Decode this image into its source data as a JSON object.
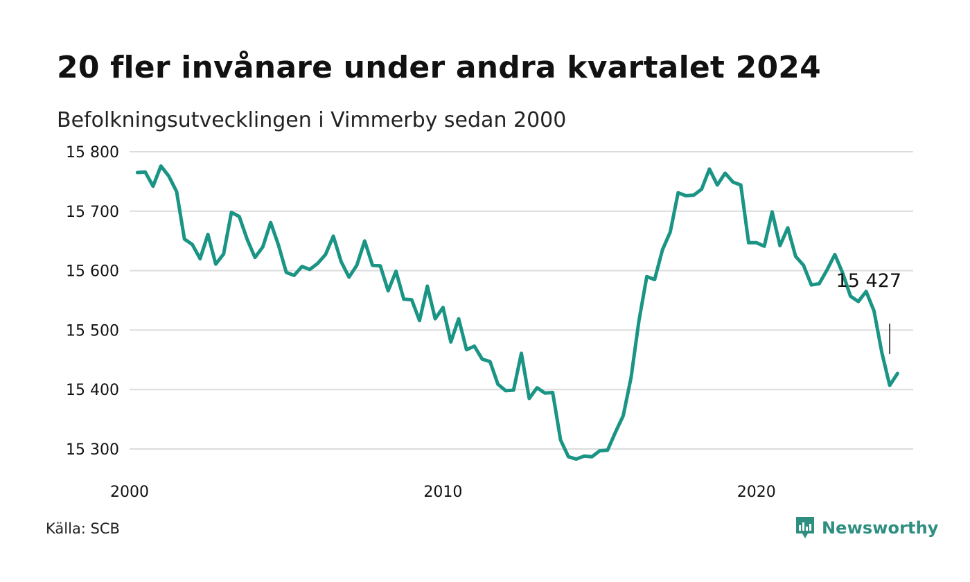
{
  "header": {
    "title": "20 fler invånare under andra kvartalet 2024",
    "subtitle": "Befolkningsutvecklingen i Vimmerby sedan 2000"
  },
  "footer": {
    "source": "Källa: SCB",
    "brand": "Newsworthy"
  },
  "colors": {
    "line": "#1a9484",
    "grid": "#dcdcdc",
    "brand": "#2e8e80",
    "text": "#111111"
  },
  "chart_data": {
    "type": "line",
    "title": "20 fler invånare under andra kvartalet 2024",
    "subtitle": "Befolkningsutvecklingen i Vimmerby sedan 2000",
    "xlabel": "",
    "ylabel": "",
    "xlim": [
      2000,
      2025
    ],
    "ylim": [
      15300,
      15800
    ],
    "y_ticks": [
      15300,
      15400,
      15500,
      15600,
      15700,
      15800
    ],
    "y_tick_labels": [
      "15 300",
      "15 400",
      "15 500",
      "15 600",
      "15 700",
      "15 800"
    ],
    "x_ticks": [
      2000,
      2010,
      2020
    ],
    "x_tick_labels": [
      "2000",
      "2010",
      "2020"
    ],
    "grid": true,
    "legend": "none",
    "annotation": {
      "label": "15 427",
      "x": 2024.25,
      "y": 15427
    },
    "series": [
      {
        "start": 2000.25,
        "step": 0.25,
        "values": [
          15765,
          15766,
          15742,
          15776,
          15759,
          15733,
          15653,
          15644,
          15620,
          15661,
          15611,
          15628,
          15698,
          15691,
          15653,
          15622,
          15640,
          15681,
          15643,
          15597,
          15592,
          15607,
          15602,
          15612,
          15627,
          15658,
          15615,
          15589,
          15609,
          15650,
          15609,
          15608,
          15566,
          15599,
          15552,
          15551,
          15516,
          15574,
          15519,
          15538,
          15480,
          15519,
          15467,
          15473,
          15451,
          15447,
          15409,
          15398,
          15399,
          15461,
          15385,
          15403,
          15394,
          15395,
          15315,
          15287,
          15283,
          15288,
          15287,
          15297,
          15298,
          15328,
          15356,
          15420,
          15515,
          15590,
          15585,
          15635,
          15665,
          15731,
          15726,
          15727,
          15737,
          15771,
          15744,
          15764,
          15749,
          15744,
          15647,
          15647,
          15641,
          15699,
          15642,
          15672,
          15624,
          15609,
          15576,
          15578,
          15601,
          15627,
          15596,
          15557,
          15548,
          15565,
          15532,
          15462,
          15407,
          15427
        ]
      }
    ]
  }
}
